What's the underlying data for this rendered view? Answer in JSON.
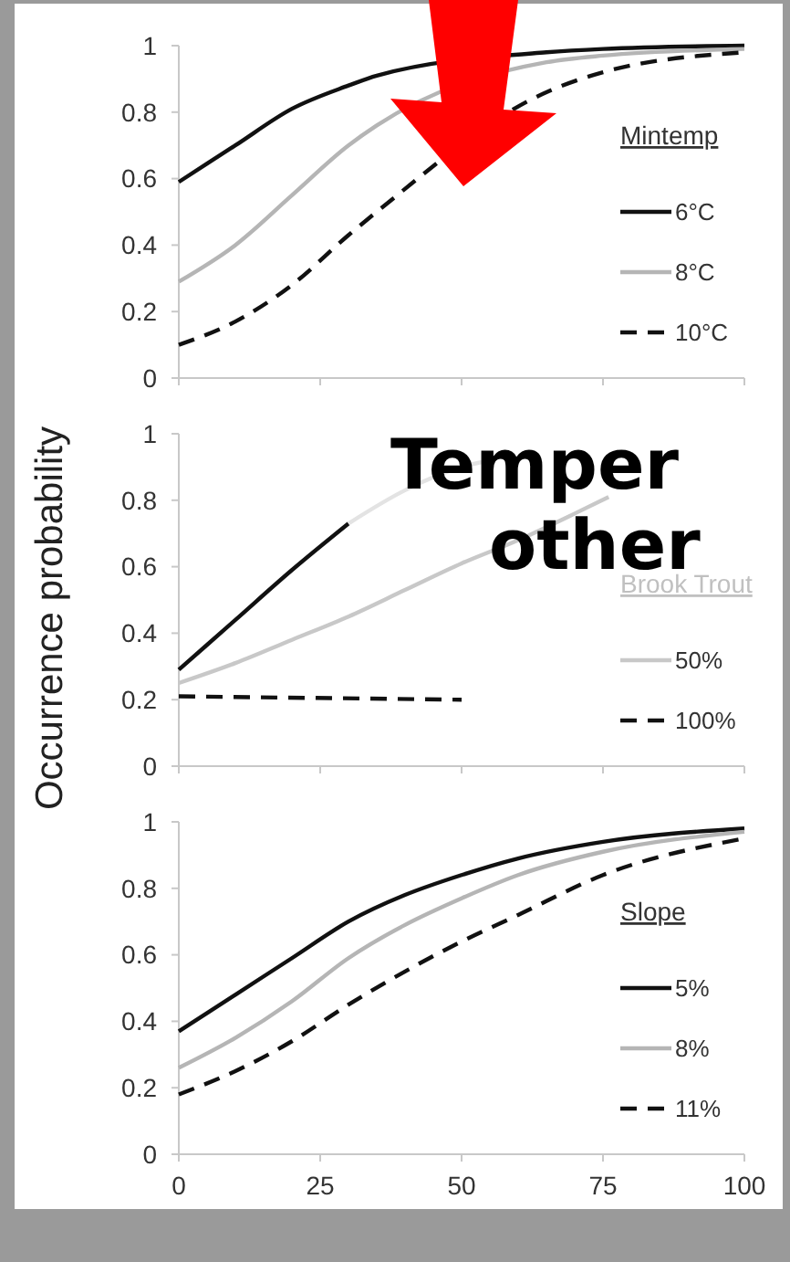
{
  "chart_data": [
    {
      "type": "line",
      "legend_title": "Mintemp",
      "legend": "right",
      "tick_labels": "y",
      "xlim": [
        0,
        100
      ],
      "xticks": [
        0,
        25,
        50,
        75,
        100
      ],
      "ylim": [
        0,
        1
      ],
      "yticks": [
        0,
        0.2,
        0.4,
        0.6,
        0.8,
        1
      ],
      "x": [
        0,
        10,
        20,
        30,
        35,
        65,
        75,
        100
      ],
      "series": [
        {
          "name": "6°C",
          "color": "#111111",
          "line_style": "solid",
          "values": [
            0.59,
            0.7,
            0.81,
            0.88,
            0.91,
            0.98,
            0.99,
            1.0
          ]
        },
        {
          "name": "8°C",
          "color": "#b5b5b5",
          "line_style": "solid",
          "values": [
            0.29,
            0.4,
            0.55,
            0.7,
            0.76,
            0.95,
            0.97,
            0.99
          ]
        },
        {
          "name": "10°C",
          "color": "#111111",
          "line_style": "dashed",
          "values": [
            0.1,
            0.17,
            0.28,
            0.43,
            0.5,
            0.86,
            0.92,
            0.98
          ]
        }
      ]
    },
    {
      "type": "line",
      "ylabel": "Occurrence probability",
      "legend_title": "Brook Trout",
      "legend": "right",
      "tick_labels": "y",
      "xlim": [
        0,
        100
      ],
      "xticks": [
        0,
        25,
        50,
        75,
        100
      ],
      "ylim": [
        0,
        1
      ],
      "yticks": [
        0,
        0.2,
        0.4,
        0.6,
        0.8,
        1
      ],
      "annotations": [
        "Temper",
        "other"
      ],
      "series": [
        {
          "color": "#111111",
          "line_style": "solid",
          "x": [
            0,
            10,
            20,
            30
          ],
          "values": [
            0.29,
            0.44,
            0.59,
            0.73
          ]
        },
        {
          "color": "#e3e3e3",
          "line_style": "solid",
          "x": [
            30,
            40,
            50,
            55
          ],
          "values": [
            0.73,
            0.83,
            0.9,
            0.92
          ]
        },
        {
          "name": "50%",
          "color": "#c8c8c8",
          "line_style": "solid",
          "x": [
            0,
            10,
            20,
            30,
            40,
            50,
            60,
            70,
            76
          ],
          "values": [
            0.25,
            0.31,
            0.38,
            0.45,
            0.53,
            0.61,
            0.68,
            0.76,
            0.81
          ]
        },
        {
          "name": "100%",
          "color": "#111111",
          "line_style": "dashed",
          "x": [
            0,
            50
          ],
          "values": [
            0.21,
            0.2
          ]
        }
      ]
    },
    {
      "type": "line",
      "legend_title": "Slope",
      "legend": "right",
      "xlim": [
        0,
        100
      ],
      "xticks": [
        0,
        25,
        50,
        75,
        100
      ],
      "ylim": [
        0,
        1
      ],
      "yticks": [
        0,
        0.2,
        0.4,
        0.6,
        0.8,
        1
      ],
      "x": [
        0,
        10,
        20,
        30,
        40,
        50,
        60,
        75,
        100
      ],
      "series": [
        {
          "name": "5%",
          "color": "#111111",
          "line_style": "solid",
          "values": [
            0.37,
            0.48,
            0.59,
            0.7,
            0.78,
            0.84,
            0.89,
            0.94,
            0.98
          ]
        },
        {
          "name": "8%",
          "color": "#b5b5b5",
          "line_style": "solid",
          "values": [
            0.26,
            0.35,
            0.46,
            0.59,
            0.69,
            0.77,
            0.84,
            0.91,
            0.97
          ]
        },
        {
          "name": "11%",
          "color": "#111111",
          "line_style": "dashed",
          "values": [
            0.18,
            0.25,
            0.34,
            0.45,
            0.55,
            0.64,
            0.72,
            0.84,
            0.95
          ]
        }
      ]
    }
  ]
}
